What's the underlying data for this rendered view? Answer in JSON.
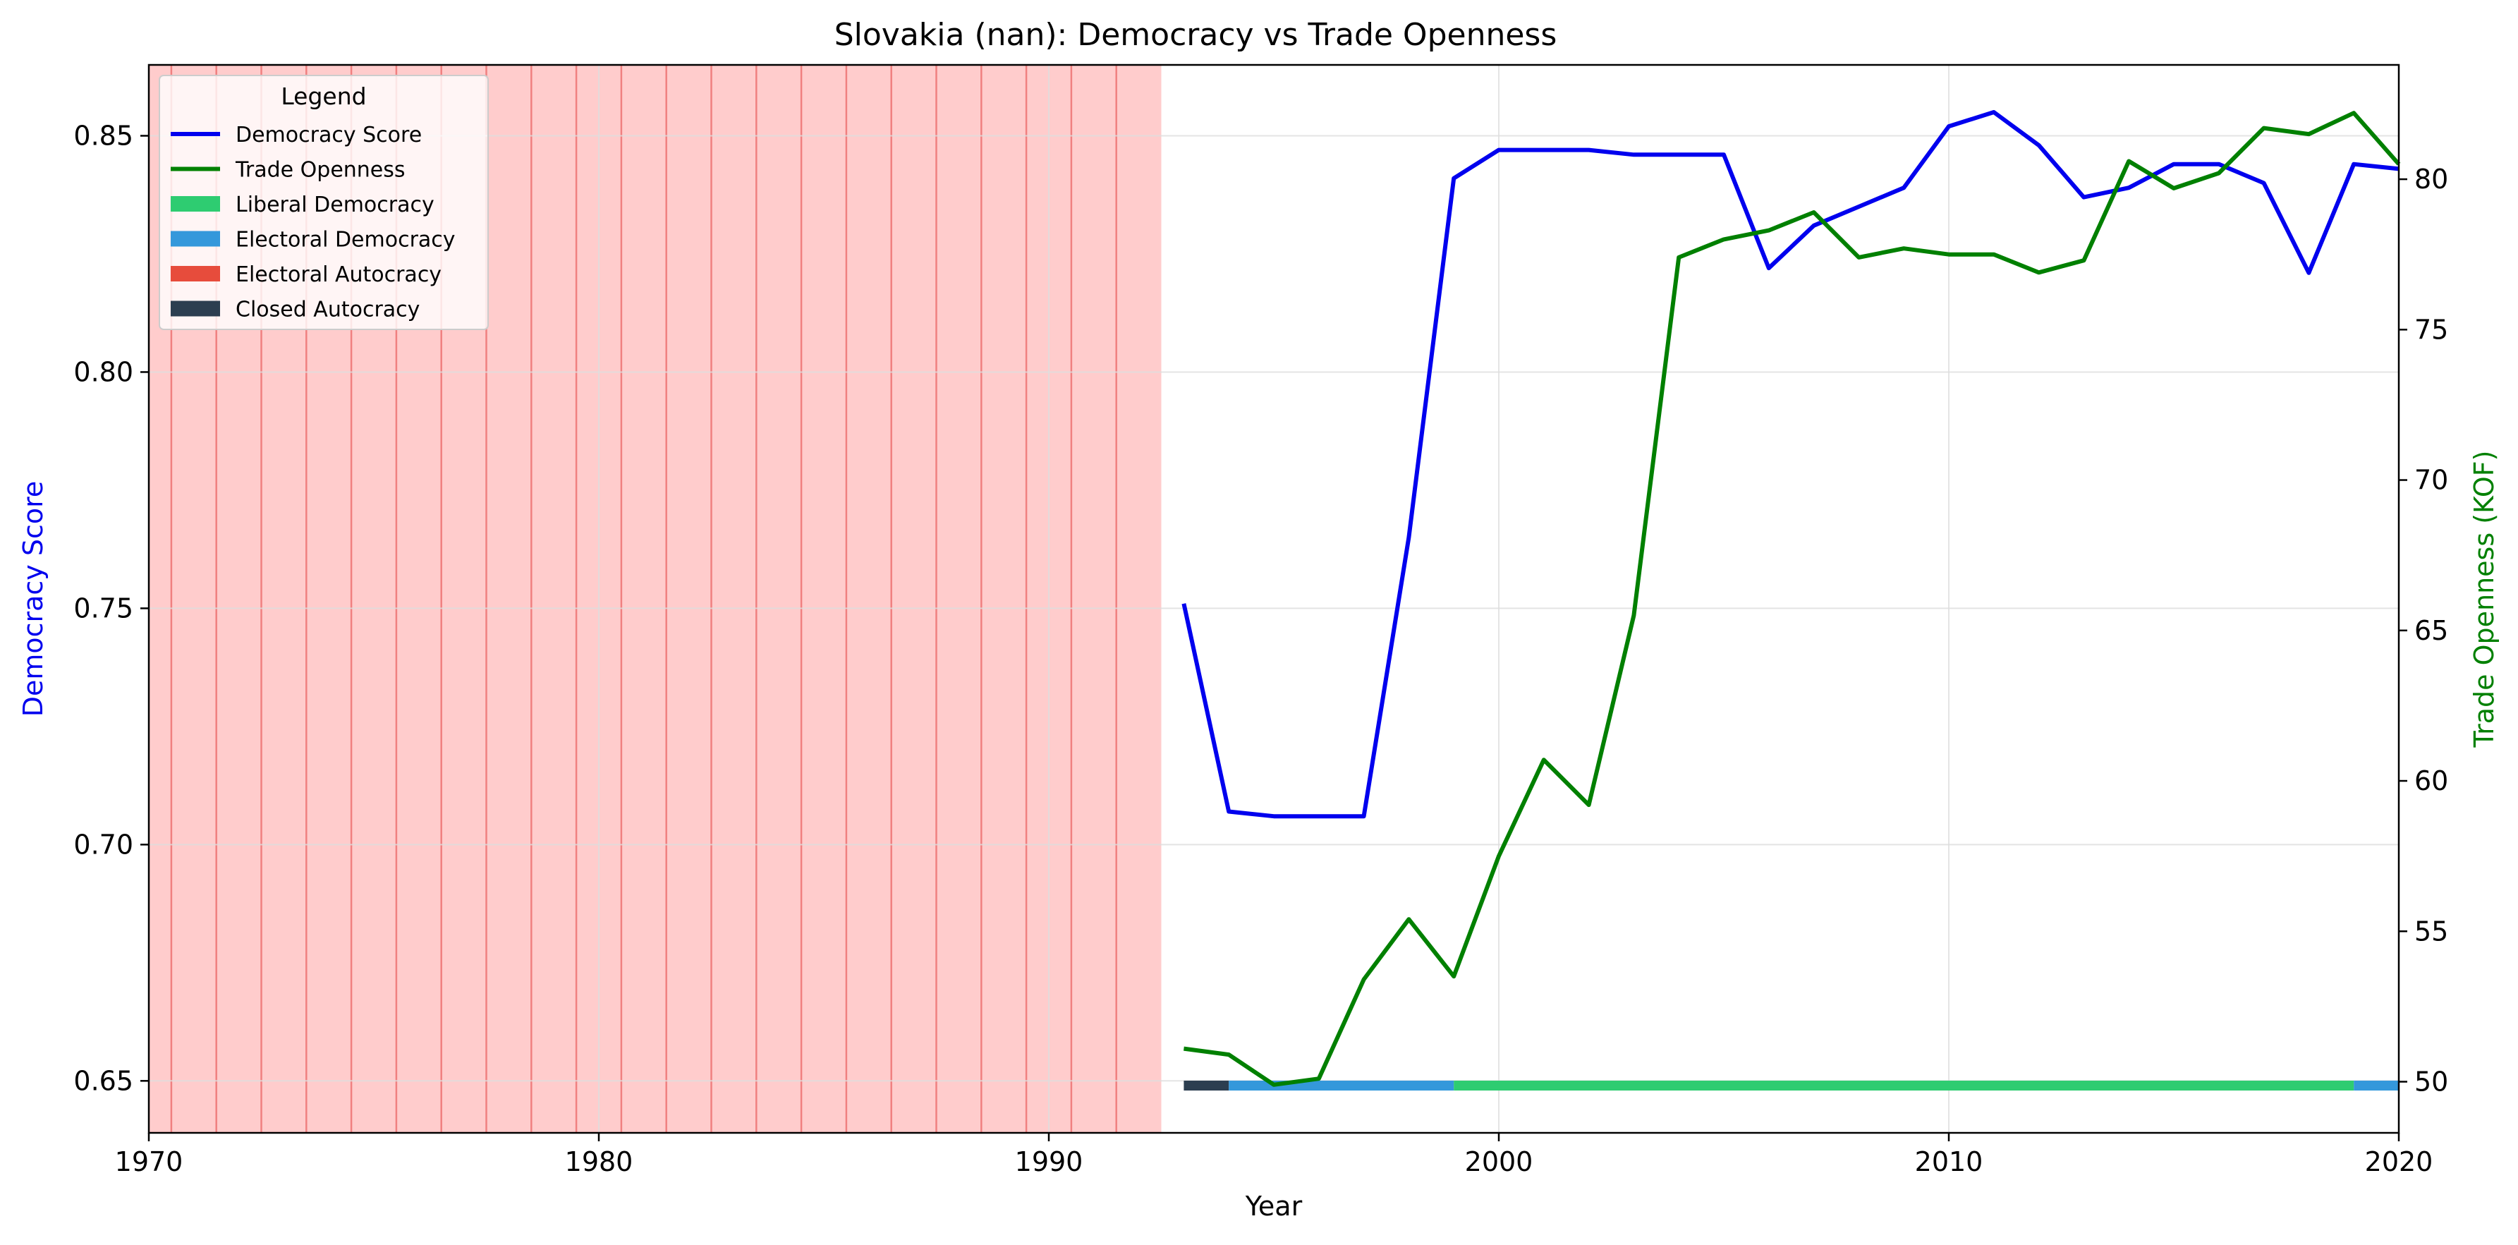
{
  "chart_data": {
    "type": "line",
    "title": "Slovakia (nan): Democracy vs Trade Openness",
    "xlabel": "Year",
    "ylabel_left": "Democracy Score",
    "ylabel_right": "Trade Openness (KOF)",
    "xlim": [
      1970,
      2020
    ],
    "ylim_left": [
      0.639,
      0.865
    ],
    "ylim_right": [
      48.3,
      83.8
    ],
    "x_ticks": [
      1970,
      1980,
      1990,
      2000,
      2010,
      2020
    ],
    "y_left_ticks": [
      0.65,
      0.7,
      0.75,
      0.8,
      0.85
    ],
    "y_right_ticks": [
      50,
      55,
      60,
      65,
      70,
      75,
      80
    ],
    "grid": true,
    "legend": {
      "title": "Legend",
      "placement": "top-left",
      "entries": [
        {
          "label": "Democracy Score",
          "kind": "line",
          "color": "#0000ee"
        },
        {
          "label": "Trade Openness",
          "kind": "line",
          "color": "#008000"
        },
        {
          "label": "Liberal Democracy",
          "kind": "patch",
          "color": "#2ecc71"
        },
        {
          "label": "Electoral Democracy",
          "kind": "patch",
          "color": "#3498db"
        },
        {
          "label": "Electoral Autocracy",
          "kind": "patch",
          "color": "#e74c3c"
        },
        {
          "label": "Closed Autocracy",
          "kind": "patch",
          "color": "#2c3e50"
        }
      ]
    },
    "shaded_region": {
      "x_start": 1970,
      "x_end": 1992.5,
      "color": "#ffcccc",
      "line_color": "#f08080",
      "lines": [
        1970.5,
        1971.5,
        1972.5,
        1973.5,
        1974.5,
        1975.5,
        1976.5,
        1977.5,
        1978.5,
        1979.5,
        1980.5,
        1981.5,
        1982.5,
        1983.5,
        1984.5,
        1985.5,
        1986.5,
        1987.5,
        1988.5,
        1989.5,
        1990.5,
        1991.5
      ]
    },
    "series": [
      {
        "name": "Democracy Score",
        "axis": "left",
        "color": "#0000ee",
        "x": [
          1993,
          1994,
          1995,
          1996,
          1997,
          1998,
          1999,
          2000,
          2001,
          2002,
          2003,
          2004,
          2005,
          2006,
          2007,
          2008,
          2009,
          2010,
          2011,
          2012,
          2013,
          2014,
          2015,
          2016,
          2017,
          2018,
          2019,
          2020
        ],
        "y": [
          0.751,
          0.707,
          0.706,
          0.706,
          0.706,
          0.765,
          0.841,
          0.847,
          0.847,
          0.847,
          0.846,
          0.846,
          0.846,
          0.822,
          0.831,
          0.835,
          0.839,
          0.852,
          0.855,
          0.848,
          0.837,
          0.839,
          0.844,
          0.844,
          0.84,
          0.821,
          0.844,
          0.843
        ]
      },
      {
        "name": "Trade Openness",
        "axis": "right",
        "color": "#008000",
        "x": [
          1993,
          1994,
          1995,
          1996,
          1997,
          1998,
          1999,
          2000,
          2001,
          2002,
          2003,
          2004,
          2005,
          2006,
          2007,
          2008,
          2009,
          2010,
          2011,
          2012,
          2013,
          2014,
          2015,
          2016,
          2017,
          2018,
          2019,
          2020
        ],
        "y": [
          51.1,
          50.9,
          49.9,
          50.1,
          53.4,
          55.4,
          53.5,
          57.5,
          60.7,
          59.2,
          65.5,
          77.4,
          78.0,
          78.3,
          78.9,
          77.4,
          77.7,
          77.5,
          77.5,
          76.9,
          77.3,
          80.6,
          79.7,
          80.2,
          81.7,
          81.5,
          82.2,
          80.5
        ]
      }
    ],
    "regime_bar": {
      "y_value": 0.649,
      "segments": [
        {
          "regime": "Closed Autocracy",
          "x_start": 1993,
          "x_end": 1994,
          "color": "#2c3e50"
        },
        {
          "regime": "Electoral Democracy",
          "x_start": 1994,
          "x_end": 1999,
          "color": "#3498db"
        },
        {
          "regime": "Liberal Democracy",
          "x_start": 1999,
          "x_end": 2019,
          "color": "#2ecc71"
        },
        {
          "regime": "Electoral Democracy",
          "x_start": 2019,
          "x_end": 2020,
          "color": "#3498db"
        }
      ]
    }
  }
}
